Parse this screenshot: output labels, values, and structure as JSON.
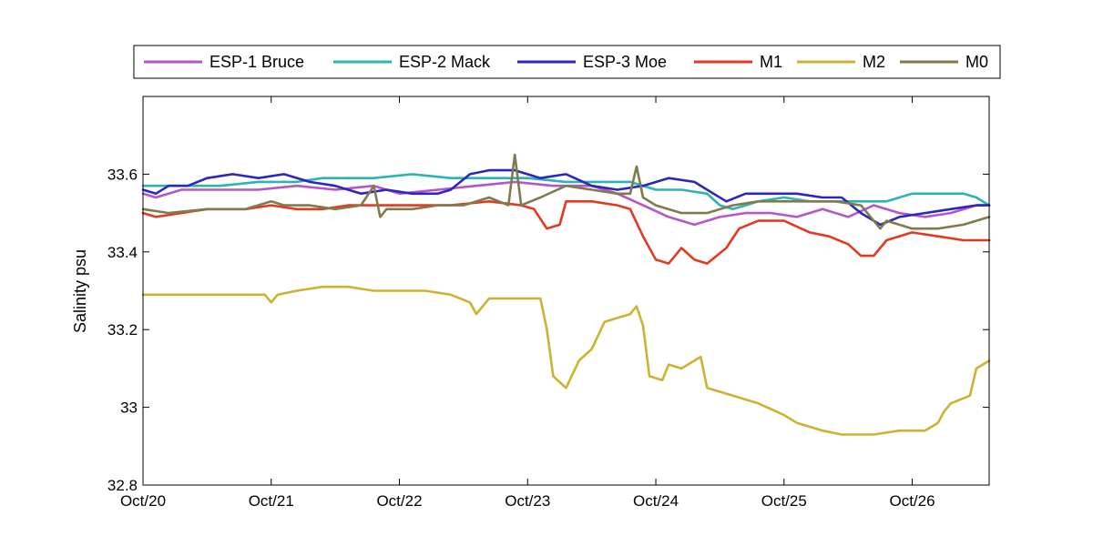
{
  "chart_data": {
    "type": "line",
    "title": "",
    "xlabel": "",
    "ylabel": "Salinity psu",
    "x_unit": "days",
    "xlim": [
      0,
      6.6
    ],
    "ylim": [
      32.8,
      33.8
    ],
    "x_ticks": [
      0,
      1,
      2,
      3,
      4,
      5,
      6
    ],
    "x_tick_labels": [
      "Oct/20",
      "Oct/21",
      "Oct/22",
      "Oct/23",
      "Oct/24",
      "Oct/25",
      "Oct/26"
    ],
    "y_ticks": [
      32.8,
      33.0,
      33.2,
      33.4,
      33.6
    ],
    "y_tick_labels": [
      "32.8",
      "33",
      "33.2",
      "33.4",
      "33.6"
    ],
    "grid": false,
    "legend_position": "top",
    "series": [
      {
        "name": "ESP-1 Bruce",
        "color": "#b456c8",
        "points": [
          [
            0,
            33.55
          ],
          [
            0.1,
            33.54
          ],
          [
            0.3,
            33.56
          ],
          [
            0.6,
            33.56
          ],
          [
            0.9,
            33.56
          ],
          [
            1.2,
            33.57
          ],
          [
            1.5,
            33.56
          ],
          [
            1.8,
            33.57
          ],
          [
            2.0,
            33.55
          ],
          [
            2.3,
            33.56
          ],
          [
            2.6,
            33.57
          ],
          [
            2.9,
            33.58
          ],
          [
            3.2,
            33.57
          ],
          [
            3.5,
            33.57
          ],
          [
            3.7,
            33.55
          ],
          [
            3.9,
            33.52
          ],
          [
            4.1,
            33.49
          ],
          [
            4.3,
            33.47
          ],
          [
            4.5,
            33.49
          ],
          [
            4.7,
            33.5
          ],
          [
            4.9,
            33.5
          ],
          [
            5.1,
            33.49
          ],
          [
            5.3,
            33.51
          ],
          [
            5.5,
            33.49
          ],
          [
            5.7,
            33.52
          ],
          [
            5.9,
            33.5
          ],
          [
            6.1,
            33.49
          ],
          [
            6.3,
            33.5
          ],
          [
            6.5,
            33.52
          ],
          [
            6.6,
            33.52
          ]
        ]
      },
      {
        "name": "ESP-2 Mack",
        "color": "#2ab5b0",
        "points": [
          [
            0,
            33.57
          ],
          [
            0.3,
            33.57
          ],
          [
            0.6,
            33.57
          ],
          [
            0.9,
            33.58
          ],
          [
            1.2,
            33.58
          ],
          [
            1.4,
            33.59
          ],
          [
            1.6,
            33.59
          ],
          [
            1.8,
            33.59
          ],
          [
            2.1,
            33.6
          ],
          [
            2.4,
            33.59
          ],
          [
            2.7,
            33.59
          ],
          [
            3.0,
            33.59
          ],
          [
            3.3,
            33.58
          ],
          [
            3.6,
            33.58
          ],
          [
            3.8,
            33.58
          ],
          [
            4.0,
            33.56
          ],
          [
            4.2,
            33.56
          ],
          [
            4.4,
            33.55
          ],
          [
            4.5,
            33.52
          ],
          [
            4.6,
            33.51
          ],
          [
            4.7,
            33.52
          ],
          [
            4.8,
            33.53
          ],
          [
            5.0,
            33.54
          ],
          [
            5.2,
            33.53
          ],
          [
            5.4,
            33.53
          ],
          [
            5.6,
            33.53
          ],
          [
            5.8,
            33.53
          ],
          [
            6.0,
            33.55
          ],
          [
            6.2,
            33.55
          ],
          [
            6.4,
            33.55
          ],
          [
            6.5,
            33.54
          ],
          [
            6.6,
            33.52
          ]
        ]
      },
      {
        "name": "ESP-3 Moe",
        "color": "#2b26c0",
        "points": [
          [
            0,
            33.56
          ],
          [
            0.1,
            33.55
          ],
          [
            0.2,
            33.57
          ],
          [
            0.35,
            33.57
          ],
          [
            0.5,
            33.59
          ],
          [
            0.7,
            33.6
          ],
          [
            0.9,
            33.59
          ],
          [
            1.1,
            33.6
          ],
          [
            1.3,
            33.58
          ],
          [
            1.5,
            33.57
          ],
          [
            1.7,
            33.55
          ],
          [
            1.9,
            33.56
          ],
          [
            2.1,
            33.55
          ],
          [
            2.3,
            33.55
          ],
          [
            2.4,
            33.56
          ],
          [
            2.55,
            33.6
          ],
          [
            2.7,
            33.61
          ],
          [
            2.9,
            33.61
          ],
          [
            3.1,
            33.59
          ],
          [
            3.3,
            33.6
          ],
          [
            3.5,
            33.57
          ],
          [
            3.7,
            33.56
          ],
          [
            3.9,
            33.57
          ],
          [
            4.1,
            33.59
          ],
          [
            4.3,
            33.58
          ],
          [
            4.45,
            33.55
          ],
          [
            4.55,
            33.53
          ],
          [
            4.7,
            33.55
          ],
          [
            4.9,
            33.55
          ],
          [
            5.1,
            33.55
          ],
          [
            5.3,
            33.54
          ],
          [
            5.45,
            33.54
          ],
          [
            5.6,
            33.5
          ],
          [
            5.75,
            33.47
          ],
          [
            5.9,
            33.49
          ],
          [
            6.1,
            33.5
          ],
          [
            6.3,
            33.51
          ],
          [
            6.5,
            33.52
          ],
          [
            6.6,
            33.52
          ]
        ]
      },
      {
        "name": "M1",
        "color": "#e23a20",
        "points": [
          [
            0,
            33.5
          ],
          [
            0.1,
            33.49
          ],
          [
            0.3,
            33.5
          ],
          [
            0.5,
            33.51
          ],
          [
            0.8,
            33.51
          ],
          [
            1.0,
            33.52
          ],
          [
            1.2,
            33.51
          ],
          [
            1.4,
            33.51
          ],
          [
            1.6,
            33.52
          ],
          [
            1.8,
            33.52
          ],
          [
            2.0,
            33.52
          ],
          [
            2.2,
            33.52
          ],
          [
            2.4,
            33.52
          ],
          [
            2.7,
            33.53
          ],
          [
            2.95,
            33.52
          ],
          [
            3.05,
            33.51
          ],
          [
            3.15,
            33.46
          ],
          [
            3.25,
            33.47
          ],
          [
            3.3,
            33.53
          ],
          [
            3.5,
            33.53
          ],
          [
            3.7,
            33.52
          ],
          [
            3.8,
            33.51
          ],
          [
            3.9,
            33.44
          ],
          [
            4.0,
            33.38
          ],
          [
            4.1,
            33.37
          ],
          [
            4.2,
            33.41
          ],
          [
            4.3,
            33.38
          ],
          [
            4.4,
            33.37
          ],
          [
            4.55,
            33.41
          ],
          [
            4.65,
            33.46
          ],
          [
            4.8,
            33.48
          ],
          [
            5.0,
            33.48
          ],
          [
            5.2,
            33.45
          ],
          [
            5.35,
            33.44
          ],
          [
            5.5,
            33.42
          ],
          [
            5.6,
            33.39
          ],
          [
            5.7,
            33.39
          ],
          [
            5.8,
            33.43
          ],
          [
            6.0,
            33.45
          ],
          [
            6.2,
            33.44
          ],
          [
            6.4,
            33.43
          ],
          [
            6.6,
            33.43
          ]
        ]
      },
      {
        "name": "M2",
        "color": "#cdb231",
        "points": [
          [
            0,
            33.29
          ],
          [
            0.2,
            33.29
          ],
          [
            0.5,
            33.29
          ],
          [
            0.8,
            33.29
          ],
          [
            0.95,
            33.29
          ],
          [
            1.0,
            33.27
          ],
          [
            1.05,
            33.29
          ],
          [
            1.2,
            33.3
          ],
          [
            1.4,
            33.31
          ],
          [
            1.6,
            33.31
          ],
          [
            1.8,
            33.3
          ],
          [
            2.0,
            33.3
          ],
          [
            2.2,
            33.3
          ],
          [
            2.4,
            33.29
          ],
          [
            2.55,
            33.27
          ],
          [
            2.6,
            33.24
          ],
          [
            2.7,
            33.28
          ],
          [
            2.9,
            33.28
          ],
          [
            3.1,
            33.28
          ],
          [
            3.15,
            33.2
          ],
          [
            3.2,
            33.08
          ],
          [
            3.3,
            33.05
          ],
          [
            3.4,
            33.12
          ],
          [
            3.5,
            33.15
          ],
          [
            3.6,
            33.22
          ],
          [
            3.7,
            33.23
          ],
          [
            3.8,
            33.24
          ],
          [
            3.85,
            33.26
          ],
          [
            3.9,
            33.21
          ],
          [
            3.95,
            33.08
          ],
          [
            4.05,
            33.07
          ],
          [
            4.1,
            33.11
          ],
          [
            4.2,
            33.1
          ],
          [
            4.3,
            33.12
          ],
          [
            4.35,
            33.13
          ],
          [
            4.4,
            33.05
          ],
          [
            4.6,
            33.03
          ],
          [
            4.8,
            33.01
          ],
          [
            5.0,
            32.98
          ],
          [
            5.1,
            32.96
          ],
          [
            5.3,
            32.94
          ],
          [
            5.45,
            32.93
          ],
          [
            5.7,
            32.93
          ],
          [
            5.9,
            32.94
          ],
          [
            6.1,
            32.94
          ],
          [
            6.2,
            32.96
          ],
          [
            6.25,
            32.99
          ],
          [
            6.3,
            33.01
          ],
          [
            6.45,
            33.03
          ],
          [
            6.5,
            33.1
          ],
          [
            6.6,
            33.12
          ]
        ]
      },
      {
        "name": "M0",
        "color": "#807a4c",
        "points": [
          [
            0,
            33.51
          ],
          [
            0.2,
            33.5
          ],
          [
            0.5,
            33.51
          ],
          [
            0.8,
            33.51
          ],
          [
            1.0,
            33.53
          ],
          [
            1.1,
            33.52
          ],
          [
            1.3,
            33.52
          ],
          [
            1.5,
            33.51
          ],
          [
            1.7,
            33.52
          ],
          [
            1.8,
            33.57
          ],
          [
            1.85,
            33.49
          ],
          [
            1.9,
            33.51
          ],
          [
            2.1,
            33.51
          ],
          [
            2.3,
            33.52
          ],
          [
            2.5,
            33.52
          ],
          [
            2.7,
            33.54
          ],
          [
            2.85,
            33.52
          ],
          [
            2.9,
            33.65
          ],
          [
            2.95,
            33.52
          ],
          [
            3.1,
            33.54
          ],
          [
            3.3,
            33.57
          ],
          [
            3.5,
            33.56
          ],
          [
            3.7,
            33.55
          ],
          [
            3.8,
            33.55
          ],
          [
            3.85,
            33.62
          ],
          [
            3.9,
            33.54
          ],
          [
            4.0,
            33.52
          ],
          [
            4.2,
            33.5
          ],
          [
            4.4,
            33.5
          ],
          [
            4.6,
            33.52
          ],
          [
            4.8,
            33.53
          ],
          [
            5.0,
            33.53
          ],
          [
            5.2,
            33.53
          ],
          [
            5.4,
            33.53
          ],
          [
            5.6,
            33.52
          ],
          [
            5.75,
            33.46
          ],
          [
            5.8,
            33.48
          ],
          [
            6.0,
            33.46
          ],
          [
            6.2,
            33.46
          ],
          [
            6.4,
            33.47
          ],
          [
            6.6,
            33.49
          ]
        ]
      }
    ]
  }
}
